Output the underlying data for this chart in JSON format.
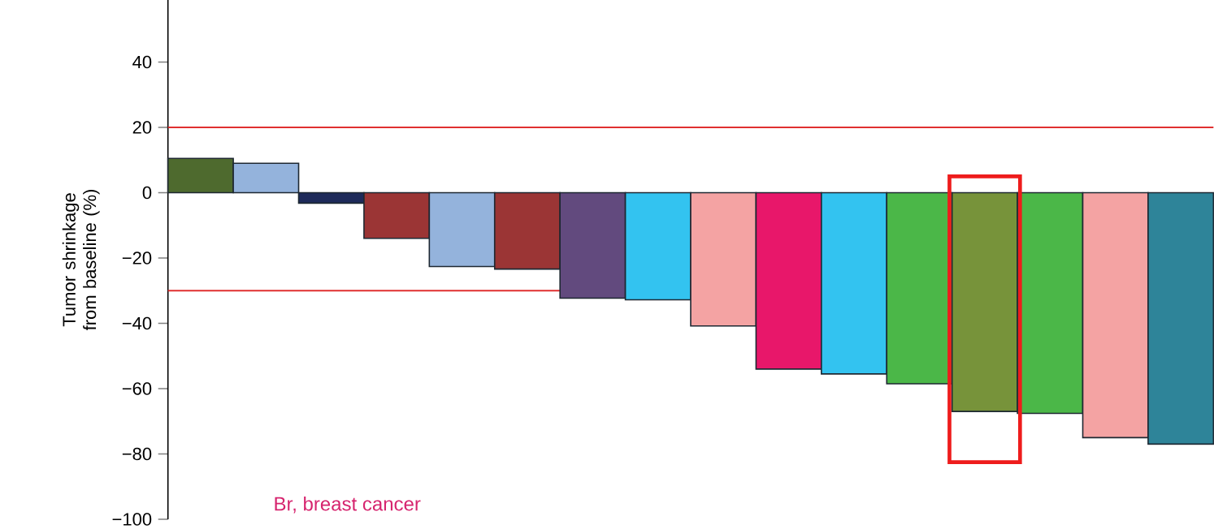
{
  "chart_data": {
    "type": "bar",
    "ylabel": "Tumor shrinkage from baseline (%)",
    "categories": [
      null,
      null,
      null,
      null,
      null,
      null,
      null,
      null,
      null,
      null,
      null,
      null,
      null,
      null,
      null,
      null
    ],
    "values": [
      10.5,
      9,
      -3.2,
      -14,
      -22.6,
      -23.4,
      -32.3,
      -32.8,
      -40.8,
      -54,
      -55.5,
      -58.5,
      -67,
      -67.6,
      -75,
      -77
    ],
    "colors": [
      "#4e6a2e",
      "#94b3dc",
      "#1e2a5a",
      "#9b3535",
      "#94b3dc",
      "#9b3535",
      "#624a7e",
      "#33c3f0",
      "#f4a3a3",
      "#e8176a",
      "#33c3f0",
      "#4bb748",
      "#77933a",
      "#4bb748",
      "#f4a3a3",
      "#2e8499"
    ],
    "ylim": [
      -100,
      59
    ],
    "yticks": [
      {
        "value": -100,
        "label": "−100"
      },
      {
        "value": -80,
        "label": "−80"
      },
      {
        "value": -60,
        "label": "−60"
      },
      {
        "value": -40,
        "label": "−40"
      },
      {
        "value": -20,
        "label": "−20"
      },
      0,
      20,
      40
    ],
    "ref_lines": [
      {
        "axis": "y",
        "value": 20,
        "color": "#e03030"
      },
      {
        "axis": "y",
        "value": -30,
        "color": "#e03030"
      }
    ],
    "annotations": [
      "Br, breast cancer"
    ]
  }
}
